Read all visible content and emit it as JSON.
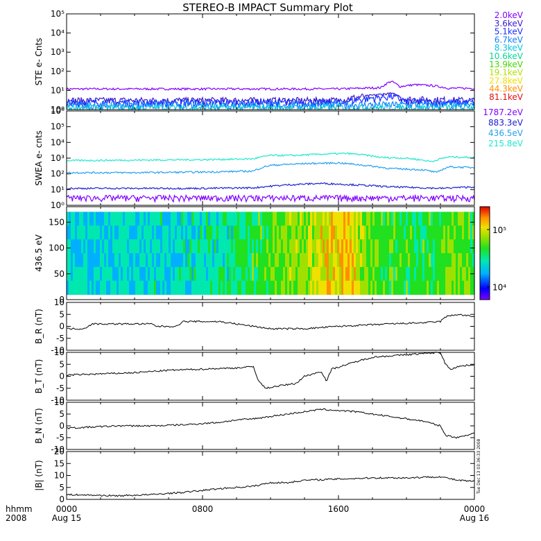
{
  "title": "STEREO-B IMPACT Summary Plot",
  "stamp": "Tue Dec 13 03:36:33 2008",
  "x_axis": {
    "corner_labels": [
      "hhmm",
      "2008"
    ],
    "ticks": [
      {
        "hour": 0,
        "time": "0000",
        "date": "Aug 15"
      },
      {
        "hour": 8,
        "time": "0800",
        "date": ""
      },
      {
        "hour": 16,
        "time": "1600",
        "date": ""
      },
      {
        "hour": 24,
        "time": "0000",
        "date": "Aug 16"
      }
    ],
    "range_hours": [
      0,
      24
    ]
  },
  "chart_data": [
    {
      "type": "line",
      "ylabel": "STE e- Cnts",
      "log_scale": true,
      "ylim_exp": [
        0,
        5
      ],
      "tick_labels": [
        "10⁰",
        "10¹",
        "10²",
        "10³",
        "10⁴",
        "10⁵"
      ],
      "series": [
        {
          "name": "2.0keV",
          "color": "#8000ff",
          "values": [
            [
              0,
              12
            ],
            [
              4,
              12
            ],
            [
              8,
              12
            ],
            [
              12,
              12
            ],
            [
              16,
              12
            ],
            [
              18.5,
              14
            ],
            [
              19.1,
              30
            ],
            [
              19.6,
              16
            ],
            [
              20.5,
              20
            ],
            [
              21.5,
              18
            ],
            [
              22.5,
              13
            ],
            [
              24,
              13
            ]
          ]
        },
        {
          "name": "3.6keV",
          "color": "#3a18c8",
          "values": [
            [
              0,
              3
            ],
            [
              8,
              3
            ],
            [
              16,
              3
            ],
            [
              19.1,
              7
            ],
            [
              20,
              3.5
            ],
            [
              24,
              3
            ]
          ]
        },
        {
          "name": "5.1keV",
          "color": "#1a30ff",
          "values": [
            [
              0,
              2.4
            ],
            [
              8,
              2.4
            ],
            [
              16,
              2.4
            ],
            [
              19.1,
              5
            ],
            [
              20,
              2.6
            ],
            [
              24,
              2.4
            ]
          ]
        },
        {
          "name": "6.7keV",
          "color": "#0f80ff",
          "values": [
            [
              0,
              1.8
            ],
            [
              24,
              1.8
            ]
          ]
        },
        {
          "name": "8.3keV",
          "color": "#00c8e0",
          "values": [
            [
              0,
              1.3
            ],
            [
              24,
              1.3
            ]
          ]
        }
      ],
      "legend": [
        {
          "name": "2.0keV",
          "color": "#8000ff"
        },
        {
          "name": "3.6keV",
          "color": "#3a18c8"
        },
        {
          "name": "5.1keV",
          "color": "#1a30ff"
        },
        {
          "name": "6.7keV",
          "color": "#0f80ff"
        },
        {
          "name": "8.3keV",
          "color": "#00c8e0"
        },
        {
          "name": "10.6keV",
          "color": "#00d890"
        },
        {
          "name": "13.9keV",
          "color": "#40d800"
        },
        {
          "name": "19.1keV",
          "color": "#b0e000"
        },
        {
          "name": "27.8keV",
          "color": "#f0e000"
        },
        {
          "name": "44.3keV",
          "color": "#ff9000"
        },
        {
          "name": "81.1keV",
          "color": "#e01010"
        }
      ]
    },
    {
      "type": "line",
      "ylabel": "SWEA e- cnts",
      "log_scale": true,
      "ylim_exp": [
        0,
        6
      ],
      "tick_labels": [
        "10⁰",
        "10¹",
        "10²",
        "10³",
        "10⁴",
        "10⁵",
        "10⁶"
      ],
      "series": [
        {
          "name": "215.8eV",
          "color": "#20e8d0",
          "values": [
            [
              0,
              700
            ],
            [
              4,
              750
            ],
            [
              8,
              800
            ],
            [
              11,
              900
            ],
            [
              12,
              1500
            ],
            [
              13.5,
              1500
            ],
            [
              15,
              1800
            ],
            [
              16.5,
              2000
            ],
            [
              17.5,
              1600
            ],
            [
              18.5,
              1100
            ],
            [
              20,
              1000
            ],
            [
              21.5,
              600
            ],
            [
              22.5,
              1200
            ],
            [
              24,
              1100
            ]
          ]
        },
        {
          "name": "436.5eV",
          "color": "#20a0f0",
          "values": [
            [
              0,
              120
            ],
            [
              4,
              120
            ],
            [
              8,
              130
            ],
            [
              11,
              150
            ],
            [
              12,
              350
            ],
            [
              14,
              450
            ],
            [
              16,
              500
            ],
            [
              17.5,
              350
            ],
            [
              19,
              220
            ],
            [
              21,
              180
            ],
            [
              21.8,
              120
            ],
            [
              22.5,
              280
            ],
            [
              24,
              250
            ]
          ]
        },
        {
          "name": "883.3eV",
          "color": "#1c20d0",
          "values": [
            [
              0,
              12
            ],
            [
              8,
              12
            ],
            [
              11,
              13
            ],
            [
              13,
              20
            ],
            [
              15,
              25
            ],
            [
              17,
              20
            ],
            [
              19,
              15
            ],
            [
              22,
              12
            ],
            [
              24,
              15
            ]
          ]
        },
        {
          "name": "1787.2eV",
          "color": "#8000ff",
          "values": [
            [
              0,
              3
            ],
            [
              24,
              3
            ]
          ]
        }
      ],
      "legend": [
        {
          "name": "1787.2eV",
          "color": "#8000ff"
        },
        {
          "name": "883.3eV",
          "color": "#1c20d0"
        },
        {
          "name": "436.5eV",
          "color": "#20a0f0"
        },
        {
          "name": "215.8eV",
          "color": "#20e8d0"
        }
      ]
    },
    {
      "type": "heatmap",
      "ylabel": "436.5 eV",
      "ylim": [
        0,
        180
      ],
      "y_extent": [
        10,
        170
      ],
      "tick_labels": [
        "0",
        "50",
        "100",
        "150"
      ],
      "colorbar": {
        "log_scale": true,
        "range": [
          6000,
          250000
        ],
        "tick_labels": [
          "10⁴",
          "10⁵"
        ]
      },
      "columns_value_hours": [
        [
          0,
          0.3
        ],
        [
          3,
          0.3
        ],
        [
          6,
          0.32
        ],
        [
          9,
          0.35
        ],
        [
          11,
          0.45
        ],
        [
          12.5,
          0.55
        ],
        [
          14,
          0.6
        ],
        [
          15.5,
          0.72
        ],
        [
          16.5,
          0.78
        ],
        [
          17.5,
          0.6
        ],
        [
          18.5,
          0.5
        ],
        [
          20,
          0.48
        ],
        [
          21.5,
          0.46
        ],
        [
          22.5,
          0.55
        ],
        [
          24,
          0.5
        ]
      ]
    },
    {
      "type": "line",
      "ylabel": "B_R (nT)",
      "ylim": [
        -10,
        10
      ],
      "tick_labels": [
        "-10",
        "-5",
        "0",
        "5",
        "10"
      ],
      "series": [
        {
          "name": "",
          "color": "#000000",
          "values": [
            [
              0,
              -1
            ],
            [
              1,
              -1
            ],
            [
              1.5,
              1
            ],
            [
              5,
              1
            ],
            [
              5.3,
              0
            ],
            [
              6.5,
              0
            ],
            [
              6.8,
              2
            ],
            [
              9,
              2
            ],
            [
              10,
              1
            ],
            [
              11,
              0
            ],
            [
              12,
              -1
            ],
            [
              14,
              -1
            ],
            [
              16,
              0
            ],
            [
              19,
              1
            ],
            [
              21,
              1.5
            ],
            [
              22,
              2
            ],
            [
              22.3,
              4
            ],
            [
              23,
              5
            ],
            [
              24,
              4
            ]
          ]
        }
      ]
    },
    {
      "type": "line",
      "ylabel": "B_T (nT)",
      "ylim": [
        -10,
        10
      ],
      "tick_labels": [
        "-10",
        "-5",
        "0",
        "5",
        "10"
      ],
      "series": [
        {
          "name": "",
          "color": "#000000",
          "values": [
            [
              0,
              0.5
            ],
            [
              2,
              1
            ],
            [
              4,
              1.5
            ],
            [
              6,
              2.5
            ],
            [
              8,
              3
            ],
            [
              10,
              3.5
            ],
            [
              11,
              4
            ],
            [
              11.3,
              -2
            ],
            [
              11.7,
              -5
            ],
            [
              12.5,
              -4
            ],
            [
              13.5,
              -3
            ],
            [
              14,
              0
            ],
            [
              15,
              2
            ],
            [
              15.3,
              -2
            ],
            [
              15.6,
              3
            ],
            [
              17,
              6
            ],
            [
              18,
              8
            ],
            [
              20,
              9
            ],
            [
              22,
              10
            ],
            [
              22.3,
              5
            ],
            [
              22.6,
              3
            ],
            [
              23,
              4
            ],
            [
              24,
              5
            ]
          ]
        }
      ]
    },
    {
      "type": "line",
      "ylabel": "B_N (nT)",
      "ylim": [
        -10,
        10
      ],
      "tick_labels": [
        "-10",
        "-5",
        "0",
        "5",
        "10"
      ],
      "series": [
        {
          "name": "",
          "color": "#000000",
          "values": [
            [
              0,
              -1
            ],
            [
              3,
              0
            ],
            [
              5,
              0
            ],
            [
              7,
              0.5
            ],
            [
              9,
              1.5
            ],
            [
              10,
              2.5
            ],
            [
              11,
              3
            ],
            [
              12,
              4
            ],
            [
              13,
              5
            ],
            [
              14,
              6
            ],
            [
              15,
              7
            ],
            [
              16,
              6.5
            ],
            [
              17,
              6
            ],
            [
              18,
              5
            ],
            [
              19,
              4
            ],
            [
              20,
              3
            ],
            [
              21,
              2
            ],
            [
              22,
              0
            ],
            [
              22.3,
              -4
            ],
            [
              23,
              -5
            ],
            [
              24,
              -3
            ]
          ]
        }
      ]
    },
    {
      "type": "line",
      "ylabel": "|B| (nT)",
      "ylim": [
        0,
        20
      ],
      "tick_labels": [
        "0",
        "5",
        "10",
        "15",
        "20"
      ],
      "series": [
        {
          "name": "",
          "color": "#000000",
          "values": [
            [
              0,
              2
            ],
            [
              3,
              1.5
            ],
            [
              5,
              2
            ],
            [
              7,
              3
            ],
            [
              9,
              4.5
            ],
            [
              11,
              5.5
            ],
            [
              12,
              7
            ],
            [
              13,
              7
            ],
            [
              14,
              8
            ],
            [
              16,
              8.5
            ],
            [
              18,
              9
            ],
            [
              20,
              9
            ],
            [
              22,
              9.5
            ],
            [
              23,
              8
            ],
            [
              24,
              7.5
            ]
          ]
        }
      ]
    }
  ]
}
